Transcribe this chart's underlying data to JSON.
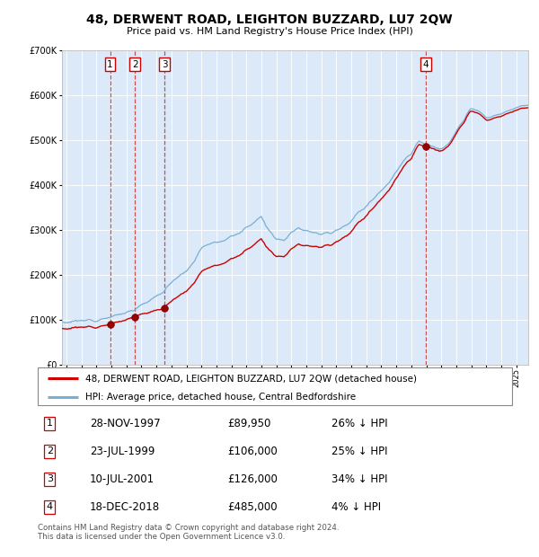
{
  "title": "48, DERWENT ROAD, LEIGHTON BUZZARD, LU7 2QW",
  "subtitle": "Price paid vs. HM Land Registry's House Price Index (HPI)",
  "sales": [
    {
      "label": "1",
      "date_str": "28-NOV-1997",
      "date_x": 1997.91,
      "price": 89950,
      "pct": "26% ↓ HPI"
    },
    {
      "label": "2",
      "date_str": "23-JUL-1999",
      "date_x": 1999.56,
      "price": 106000,
      "pct": "25% ↓ HPI"
    },
    {
      "label": "3",
      "date_str": "10-JUL-2001",
      "date_x": 2001.53,
      "price": 126000,
      "pct": "34% ↓ HPI"
    },
    {
      "label": "4",
      "date_str": "18-DEC-2018",
      "date_x": 2018.96,
      "price": 485000,
      "pct": "4% ↓ HPI"
    }
  ],
  "legend_property": "48, DERWENT ROAD, LEIGHTON BUZZARD, LU7 2QW (detached house)",
  "legend_hpi": "HPI: Average price, detached house, Central Bedfordshire",
  "footer": "Contains HM Land Registry data © Crown copyright and database right 2024.\nThis data is licensed under the Open Government Licence v3.0.",
  "bg_color": "#dce9f8",
  "line_color_property": "#cc0000",
  "line_color_hpi": "#7aafd4",
  "ylim": [
    0,
    700000
  ],
  "xlim_start": 1994.7,
  "xlim_end": 2025.8,
  "hpi_anchors": [
    [
      1995.0,
      95000
    ],
    [
      1996.0,
      98000
    ],
    [
      1997.0,
      101000
    ],
    [
      1997.5,
      103000
    ],
    [
      1998.0,
      108000
    ],
    [
      1999.0,
      116000
    ],
    [
      1999.5,
      121000
    ],
    [
      2000.0,
      133000
    ],
    [
      2001.0,
      152000
    ],
    [
      2001.5,
      165000
    ],
    [
      2002.0,
      185000
    ],
    [
      2003.0,
      210000
    ],
    [
      2003.5,
      230000
    ],
    [
      2004.0,
      258000
    ],
    [
      2004.5,
      270000
    ],
    [
      2005.0,
      272000
    ],
    [
      2005.5,
      278000
    ],
    [
      2006.0,
      285000
    ],
    [
      2006.5,
      292000
    ],
    [
      2007.0,
      305000
    ],
    [
      2007.5,
      318000
    ],
    [
      2008.0,
      330000
    ],
    [
      2008.5,
      300000
    ],
    [
      2009.0,
      280000
    ],
    [
      2009.5,
      278000
    ],
    [
      2010.0,
      295000
    ],
    [
      2010.5,
      305000
    ],
    [
      2011.0,
      300000
    ],
    [
      2011.5,
      295000
    ],
    [
      2012.0,
      290000
    ],
    [
      2012.5,
      293000
    ],
    [
      2013.0,
      300000
    ],
    [
      2013.5,
      308000
    ],
    [
      2014.0,
      320000
    ],
    [
      2014.5,
      338000
    ],
    [
      2015.0,
      355000
    ],
    [
      2015.5,
      370000
    ],
    [
      2016.0,
      390000
    ],
    [
      2016.5,
      405000
    ],
    [
      2017.0,
      430000
    ],
    [
      2017.5,
      455000
    ],
    [
      2018.0,
      468000
    ],
    [
      2018.5,
      500000
    ],
    [
      2019.0,
      490000
    ],
    [
      2019.5,
      485000
    ],
    [
      2020.0,
      478000
    ],
    [
      2020.5,
      490000
    ],
    [
      2021.0,
      520000
    ],
    [
      2021.5,
      545000
    ],
    [
      2022.0,
      570000
    ],
    [
      2022.5,
      565000
    ],
    [
      2023.0,
      548000
    ],
    [
      2023.5,
      552000
    ],
    [
      2024.0,
      558000
    ],
    [
      2024.5,
      565000
    ],
    [
      2025.0,
      572000
    ],
    [
      2025.5,
      578000
    ]
  ]
}
